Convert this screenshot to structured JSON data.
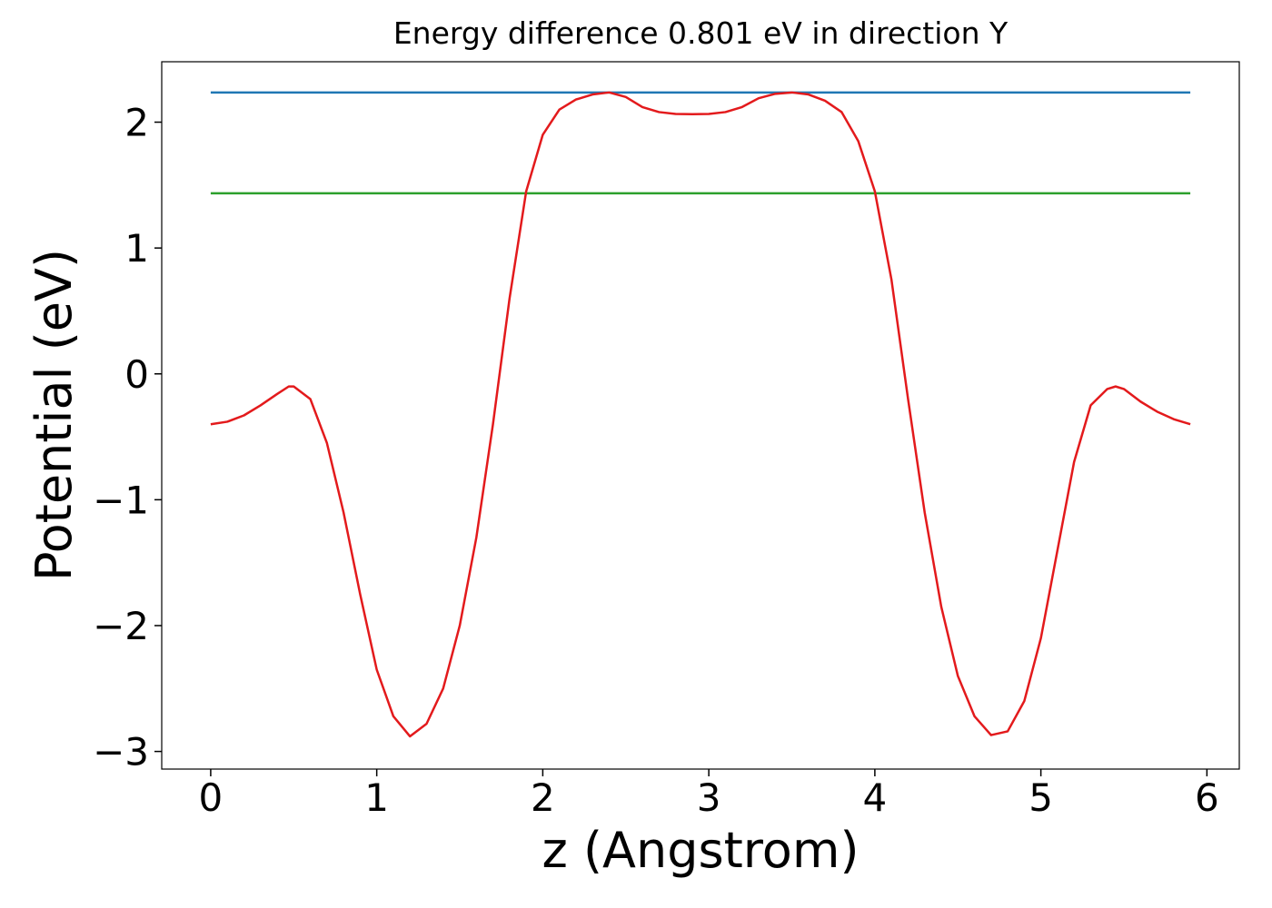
{
  "chart_data": {
    "type": "line",
    "title": "Energy difference 0.801 eV in direction Y",
    "xlabel": "z (Angstrom)",
    "ylabel": "Potential (eV)",
    "xlim": [
      -0.295,
      6.195
    ],
    "ylim": [
      -3.14,
      2.48
    ],
    "xticks": [
      0,
      1,
      2,
      3,
      4,
      5,
      6
    ],
    "yticks": [
      {
        "value": -3,
        "label": "−3"
      },
      {
        "value": -2,
        "label": "−2"
      },
      {
        "value": -1,
        "label": "−1"
      },
      0,
      1,
      2
    ],
    "grid": false,
    "series": [
      {
        "color": "#1f77b4",
        "x": [
          0,
          5.9
        ],
        "values": [
          2.236,
          2.236
        ]
      },
      {
        "color": "#2ca02c",
        "x": [
          0,
          5.9
        ],
        "values": [
          1.435,
          1.435
        ]
      },
      {
        "color": "#e31a1c",
        "x": [
          0,
          0.1,
          0.2,
          0.3,
          0.4,
          0.47,
          0.5,
          0.6,
          0.7,
          0.8,
          0.9,
          1.0,
          1.1,
          1.2,
          1.3,
          1.4,
          1.5,
          1.6,
          1.7,
          1.8,
          1.9,
          2.0,
          2.1,
          2.2,
          2.3,
          2.4,
          2.5,
          2.6,
          2.7,
          2.8,
          2.9,
          3.0,
          3.1,
          3.2,
          3.3,
          3.4,
          3.5,
          3.6,
          3.7,
          3.8,
          3.9,
          4.0,
          4.1,
          4.2,
          4.3,
          4.4,
          4.5,
          4.6,
          4.7,
          4.8,
          4.9,
          5.0,
          5.1,
          5.2,
          5.3,
          5.4,
          5.45,
          5.5,
          5.6,
          5.7,
          5.8,
          5.9
        ],
        "values": [
          -0.4,
          -0.38,
          -0.33,
          -0.25,
          -0.16,
          -0.1,
          -0.1,
          -0.2,
          -0.55,
          -1.1,
          -1.75,
          -2.35,
          -2.72,
          -2.88,
          -2.78,
          -2.5,
          -2.0,
          -1.3,
          -0.4,
          0.6,
          1.45,
          1.9,
          2.1,
          2.18,
          2.22,
          2.236,
          2.2,
          2.12,
          2.08,
          2.065,
          2.063,
          2.065,
          2.08,
          2.12,
          2.19,
          2.225,
          2.236,
          2.22,
          2.17,
          2.08,
          1.85,
          1.45,
          0.75,
          -0.2,
          -1.1,
          -1.85,
          -2.4,
          -2.72,
          -2.87,
          -2.84,
          -2.6,
          -2.1,
          -1.4,
          -0.7,
          -0.25,
          -0.12,
          -0.1,
          -0.12,
          -0.22,
          -0.3,
          -0.36,
          -0.4
        ]
      }
    ]
  }
}
